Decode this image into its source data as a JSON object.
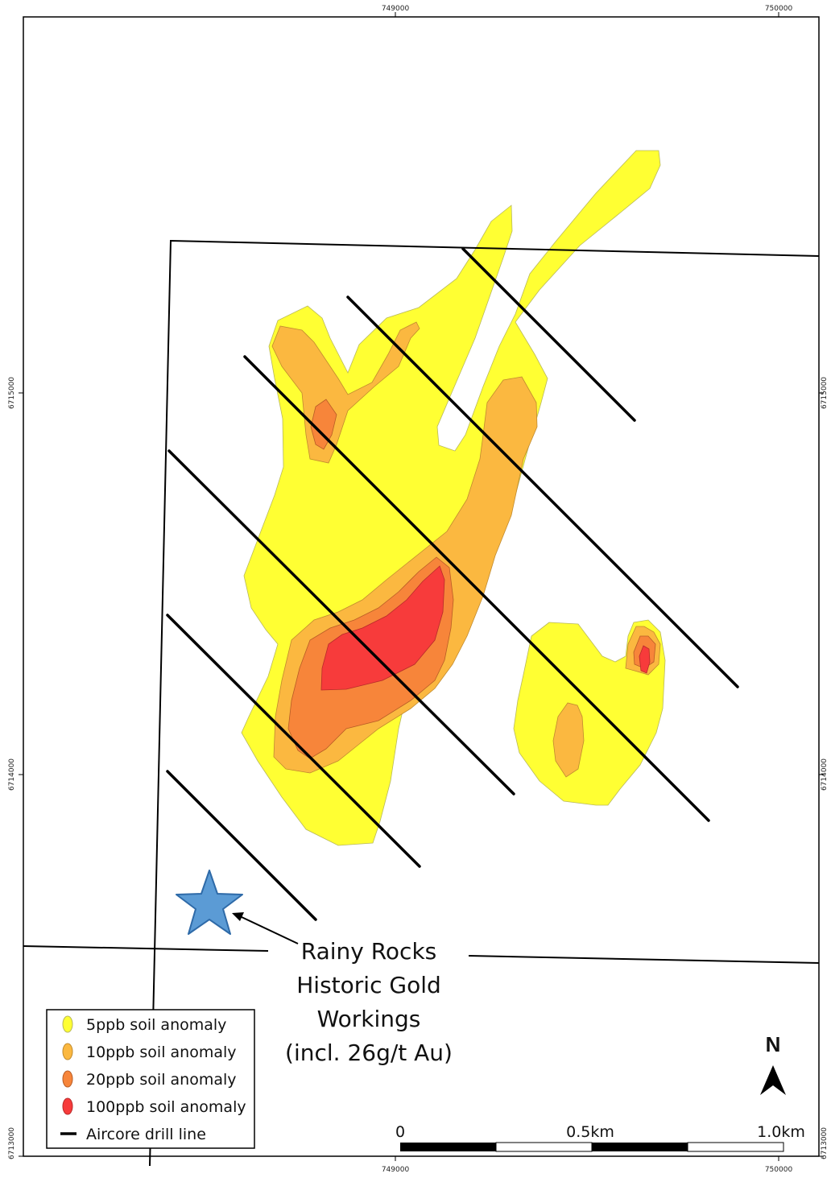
{
  "grid": {
    "eastings_top": [
      "749000",
      "750000"
    ],
    "eastings_bottom": [
      "749000",
      "750000"
    ],
    "northings_left": [
      "6715000",
      "6714000",
      "6713000"
    ],
    "northings_right": [
      "6715000",
      "6714000",
      "6713000"
    ]
  },
  "annotation": {
    "lines": [
      "Rainy Rocks",
      "Historic Gold",
      "Workings",
      "(incl. 26g/t Au)"
    ],
    "marker": "star-icon"
  },
  "legend": {
    "items": [
      {
        "label": "5ppb soil anomaly",
        "color": "#ffff33"
      },
      {
        "label": "10ppb soil anomaly",
        "color": "#fbb840"
      },
      {
        "label": "20ppb soil anomaly",
        "color": "#f7853a"
      },
      {
        "label": "100ppb soil anomaly",
        "color": "#f73b3b"
      },
      {
        "label": "Aircore drill line",
        "color": "#000000"
      }
    ]
  },
  "scale_bar": {
    "labels": [
      "0",
      "0.5km",
      "1.0km"
    ]
  },
  "north_arrow": {
    "label": "N"
  },
  "colors": {
    "anomaly_5ppb": "#ffff33",
    "anomaly_10ppb": "#fbb840",
    "anomaly_20ppb": "#f7853a",
    "anomaly_100ppb": "#f73b3b",
    "star": "#5b9bd5",
    "star_outline": "#2e6aa8",
    "drill_line": "#000000"
  }
}
